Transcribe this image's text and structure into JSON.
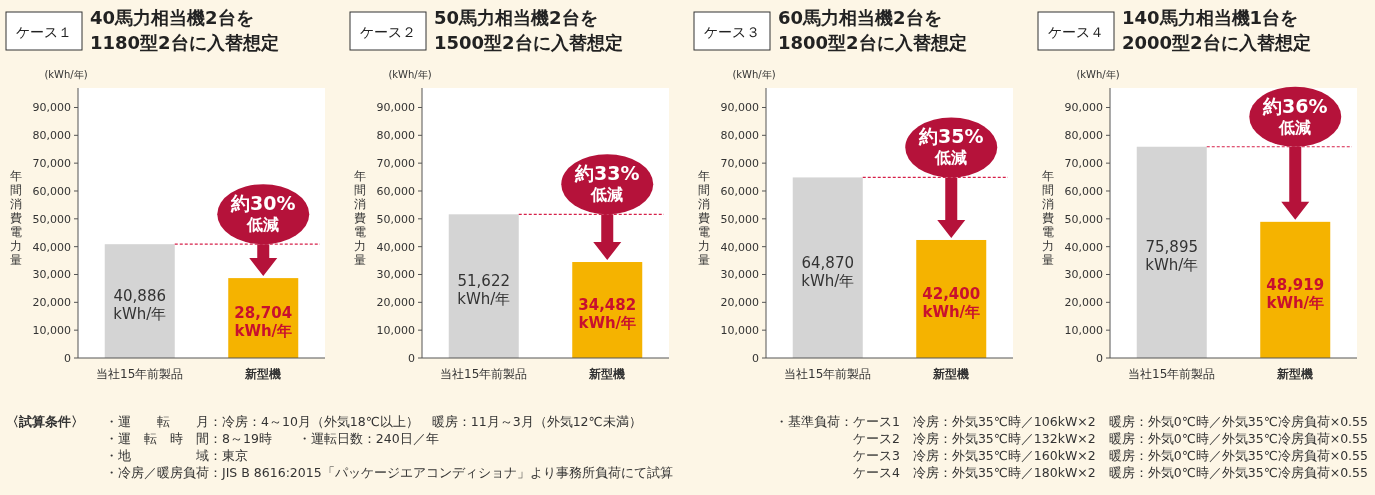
{
  "chart_data": [
    {
      "type": "bar",
      "subtitle": "ケース１",
      "title": "40馬力相当機2台を\n1180型2台に入替想定",
      "ylabel": "年間消費電力量",
      "categories": [
        "当社15年前製品",
        "新型機"
      ],
      "values": [
        40886,
        28704
      ],
      "colors": [
        "#d4d4d4",
        "#f5b300"
      ],
      "value_labels": [
        "40,886\nkWh/年",
        "28,704\nkWh/年"
      ],
      "ylim": [
        0,
        97000
      ],
      "yticks": [
        {
          "value": 0,
          "label": "0"
        },
        {
          "value": 10000,
          "label": "10,000"
        },
        {
          "value": 20000,
          "label": "20,000"
        },
        {
          "value": 30000,
          "label": "30,000"
        },
        {
          "value": 40000,
          "label": "40,000"
        },
        {
          "value": 50000,
          "label": "50,000"
        },
        {
          "value": 60000,
          "label": "60,000"
        },
        {
          "value": 70000,
          "label": "70,000"
        },
        {
          "value": 80000,
          "label": "80,000"
        },
        {
          "value": 90000,
          "label": "90,000"
        }
      ],
      "ref_lines": [
        {
          "axis": "y",
          "value": 40886,
          "color": "#d6204a",
          "line_style": "dashed"
        }
      ],
      "annotations": [
        "(kWh/年)",
        {
          "text": "約30%\n低減",
          "x": "新型機",
          "y": 40886
        },
        "〈試算条件〉",
        "・運　　転　　月：冷房：4～10月（外気18℃以上）　暖房：11月～3月（外気12℃未満）",
        "・運　転　時　間：8～19時　　・運転日数：240日／年",
        "・地　　　　　域：東京",
        "・冷房／暖房負荷：JIS B 8616:2015「パッケージエアコンディショナ」より事務所負荷にて試算"
      ]
    },
    {
      "type": "bar",
      "subtitle": "ケース２",
      "title": "50馬力相当機2台を\n1500型2台に入替想定",
      "ylabel": "年間消費電力量",
      "categories": [
        "当社15年前製品",
        "新型機"
      ],
      "values": [
        51622,
        34482
      ],
      "colors": [
        "#d4d4d4",
        "#f5b300"
      ],
      "value_labels": [
        "51,622\nkWh/年",
        "34,482\nkWh/年"
      ],
      "ylim": [
        0,
        97000
      ],
      "yticks": [
        {
          "value": 0,
          "label": "0"
        },
        {
          "value": 10000,
          "label": "10,000"
        },
        {
          "value": 20000,
          "label": "20,000"
        },
        {
          "value": 30000,
          "label": "30,000"
        },
        {
          "value": 40000,
          "label": "40,000"
        },
        {
          "value": 50000,
          "label": "50,000"
        },
        {
          "value": 60000,
          "label": "60,000"
        },
        {
          "value": 70000,
          "label": "70,000"
        },
        {
          "value": 80000,
          "label": "80,000"
        },
        {
          "value": 90000,
          "label": "90,000"
        }
      ],
      "ref_lines": [
        {
          "axis": "y",
          "value": 51622,
          "color": "#d6204a",
          "line_style": "dashed"
        }
      ],
      "annotations": [
        "(kWh/年)",
        {
          "text": "約33%\n低減",
          "x": "新型機",
          "y": 51622
        }
      ]
    },
    {
      "type": "bar",
      "subtitle": "ケース３",
      "title": "60馬力相当機2台を\n1800型2台に入替想定",
      "ylabel": "年間消費電力量",
      "categories": [
        "当社15年前製品",
        "新型機"
      ],
      "values": [
        64870,
        42400
      ],
      "colors": [
        "#d4d4d4",
        "#f5b300"
      ],
      "value_labels": [
        "64,870\nkWh/年",
        "42,400\nkWh/年"
      ],
      "ylim": [
        0,
        97000
      ],
      "yticks": [
        {
          "value": 0,
          "label": "0"
        },
        {
          "value": 10000,
          "label": "10,000"
        },
        {
          "value": 20000,
          "label": "20,000"
        },
        {
          "value": 30000,
          "label": "30,000"
        },
        {
          "value": 40000,
          "label": "40,000"
        },
        {
          "value": 50000,
          "label": "50,000"
        },
        {
          "value": 60000,
          "label": "60,000"
        },
        {
          "value": 70000,
          "label": "70,000"
        },
        {
          "value": 80000,
          "label": "80,000"
        },
        {
          "value": 90000,
          "label": "90,000"
        }
      ],
      "ref_lines": [
        {
          "axis": "y",
          "value": 64870,
          "color": "#d6204a",
          "line_style": "dashed"
        }
      ],
      "annotations": [
        "(kWh/年)",
        {
          "text": "約35%\n低減",
          "x": "新型機",
          "y": 64870
        },
        "・基準負荷：ケース1　冷房：外気35℃時／106kW×2　暖房：外気0℃時／外気35℃冷房負荷×0.55",
        "ケース2　冷房：外気35℃時／132kW×2　暖房：外気0℃時／外気35℃冷房負荷×0.55",
        "ケース3　冷房：外気35℃時／160kW×2　暖房：外気0℃時／外気35℃冷房負荷×0.55",
        "ケース4　冷房：外気35℃時／180kW×2　暖房：外気0℃時／外気35℃冷房負荷×0.55"
      ]
    },
    {
      "type": "bar",
      "subtitle": "ケース４",
      "title": "140馬力相当機1台を\n2000型2台に入替想定",
      "ylabel": "年間消費電力量",
      "categories": [
        "当社15年前製品",
        "新型機"
      ],
      "values": [
        75895,
        48919
      ],
      "colors": [
        "#d4d4d4",
        "#f5b300"
      ],
      "value_labels": [
        "75,895\nkWh/年",
        "48,919\nkWh/年"
      ],
      "ylim": [
        0,
        97000
      ],
      "yticks": [
        {
          "value": 0,
          "label": "0"
        },
        {
          "value": 10000,
          "label": "10,000"
        },
        {
          "value": 20000,
          "label": "20,000"
        },
        {
          "value": 30000,
          "label": "30,000"
        },
        {
          "value": 40000,
          "label": "40,000"
        },
        {
          "value": 50000,
          "label": "50,000"
        },
        {
          "value": 60000,
          "label": "60,000"
        },
        {
          "value": 70000,
          "label": "70,000"
        },
        {
          "value": 80000,
          "label": "80,000"
        },
        {
          "value": 90000,
          "label": "90,000"
        }
      ],
      "ref_lines": [
        {
          "axis": "y",
          "value": 75895,
          "color": "#d6204a",
          "line_style": "dashed"
        }
      ],
      "annotations": [
        "(kWh/年)",
        {
          "text": "約36%\n低減",
          "x": "新型機",
          "y": 75895
        }
      ]
    }
  ]
}
